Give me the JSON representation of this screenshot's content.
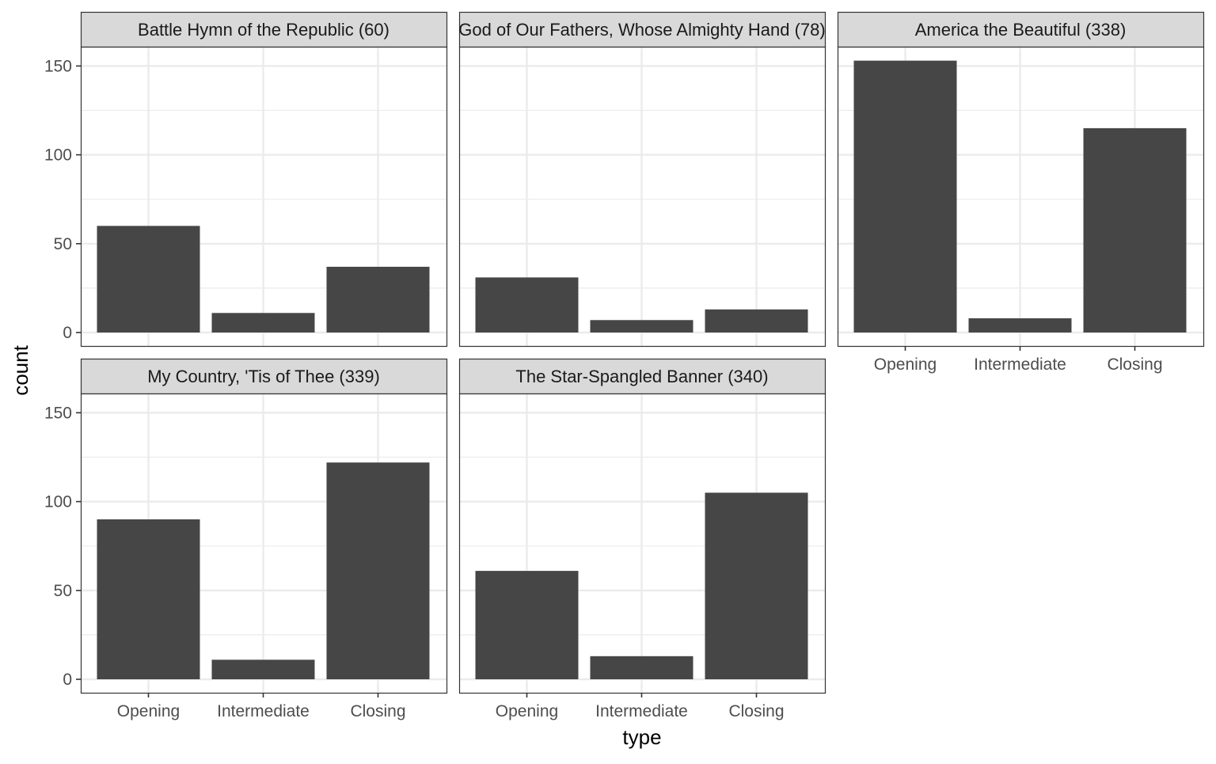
{
  "chart_data": {
    "type": "bar",
    "xlabel": "type",
    "ylabel": "count",
    "ylim": [
      0,
      160
    ],
    "y_ticks": [
      0,
      50,
      100,
      150
    ],
    "categories": [
      "Opening",
      "Intermediate",
      "Closing"
    ],
    "grid": true,
    "bar_color": "#464646",
    "panel_border_color": "#333333",
    "grid_color": "#ebebeb",
    "strip_fill": "#d9d9d9",
    "facets": [
      {
        "title": "Battle Hymn of the Republic (60)",
        "values": [
          60,
          11,
          37
        ]
      },
      {
        "title": "God of Our Fathers, Whose Almighty Hand (78)",
        "values": [
          31,
          7,
          13
        ]
      },
      {
        "title": "America the Beautiful (338)",
        "values": [
          153,
          8,
          115
        ]
      },
      {
        "title": "My Country, 'Tis of Thee (339)",
        "values": [
          90,
          11,
          122
        ]
      },
      {
        "title": "The Star-Spangled Banner (340)",
        "values": [
          61,
          13,
          105
        ]
      }
    ]
  }
}
